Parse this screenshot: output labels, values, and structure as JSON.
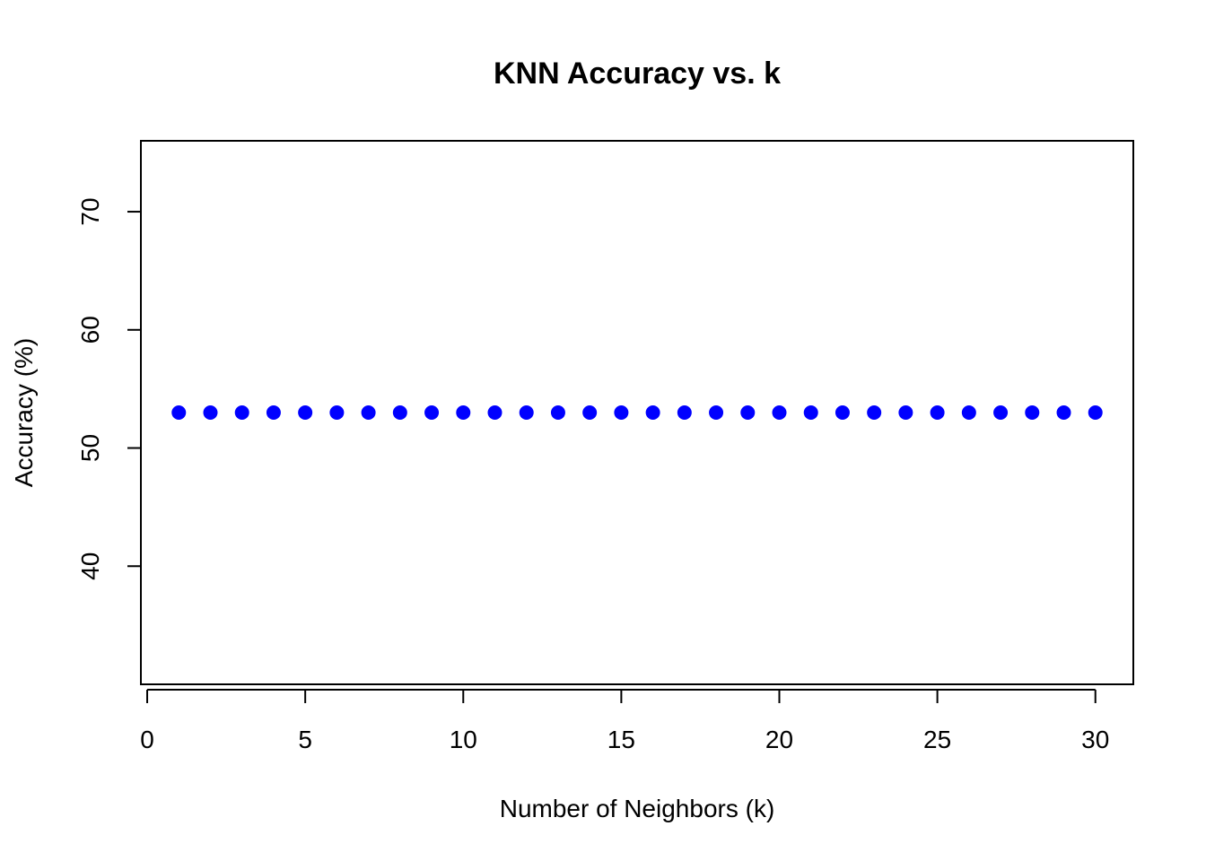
{
  "chart_data": {
    "type": "scatter",
    "title": "KNN Accuracy vs. k",
    "xlabel": "Number of Neighbors (k)",
    "ylabel": "Accuracy (%)",
    "xlim": [
      -0.2,
      31.2
    ],
    "ylim": [
      30,
      76
    ],
    "xticks": [
      0,
      5,
      10,
      15,
      20,
      25,
      30
    ],
    "yticks": [
      40,
      50,
      60,
      70
    ],
    "grid": false,
    "legend": "none",
    "marker_color": "#0000ff",
    "series": [
      {
        "x": [
          1,
          2,
          3,
          4,
          5,
          6,
          7,
          8,
          9,
          10,
          11,
          12,
          13,
          14,
          15,
          16,
          17,
          18,
          19,
          20,
          21,
          22,
          23,
          24,
          25,
          26,
          27,
          28,
          29,
          30
        ],
        "y": [
          53,
          53,
          53,
          53,
          53,
          53,
          53,
          53,
          53,
          53,
          53,
          53,
          53,
          53,
          53,
          53,
          53,
          53,
          53,
          53,
          53,
          53,
          53,
          53,
          53,
          53,
          53,
          53,
          53,
          53
        ]
      }
    ]
  }
}
